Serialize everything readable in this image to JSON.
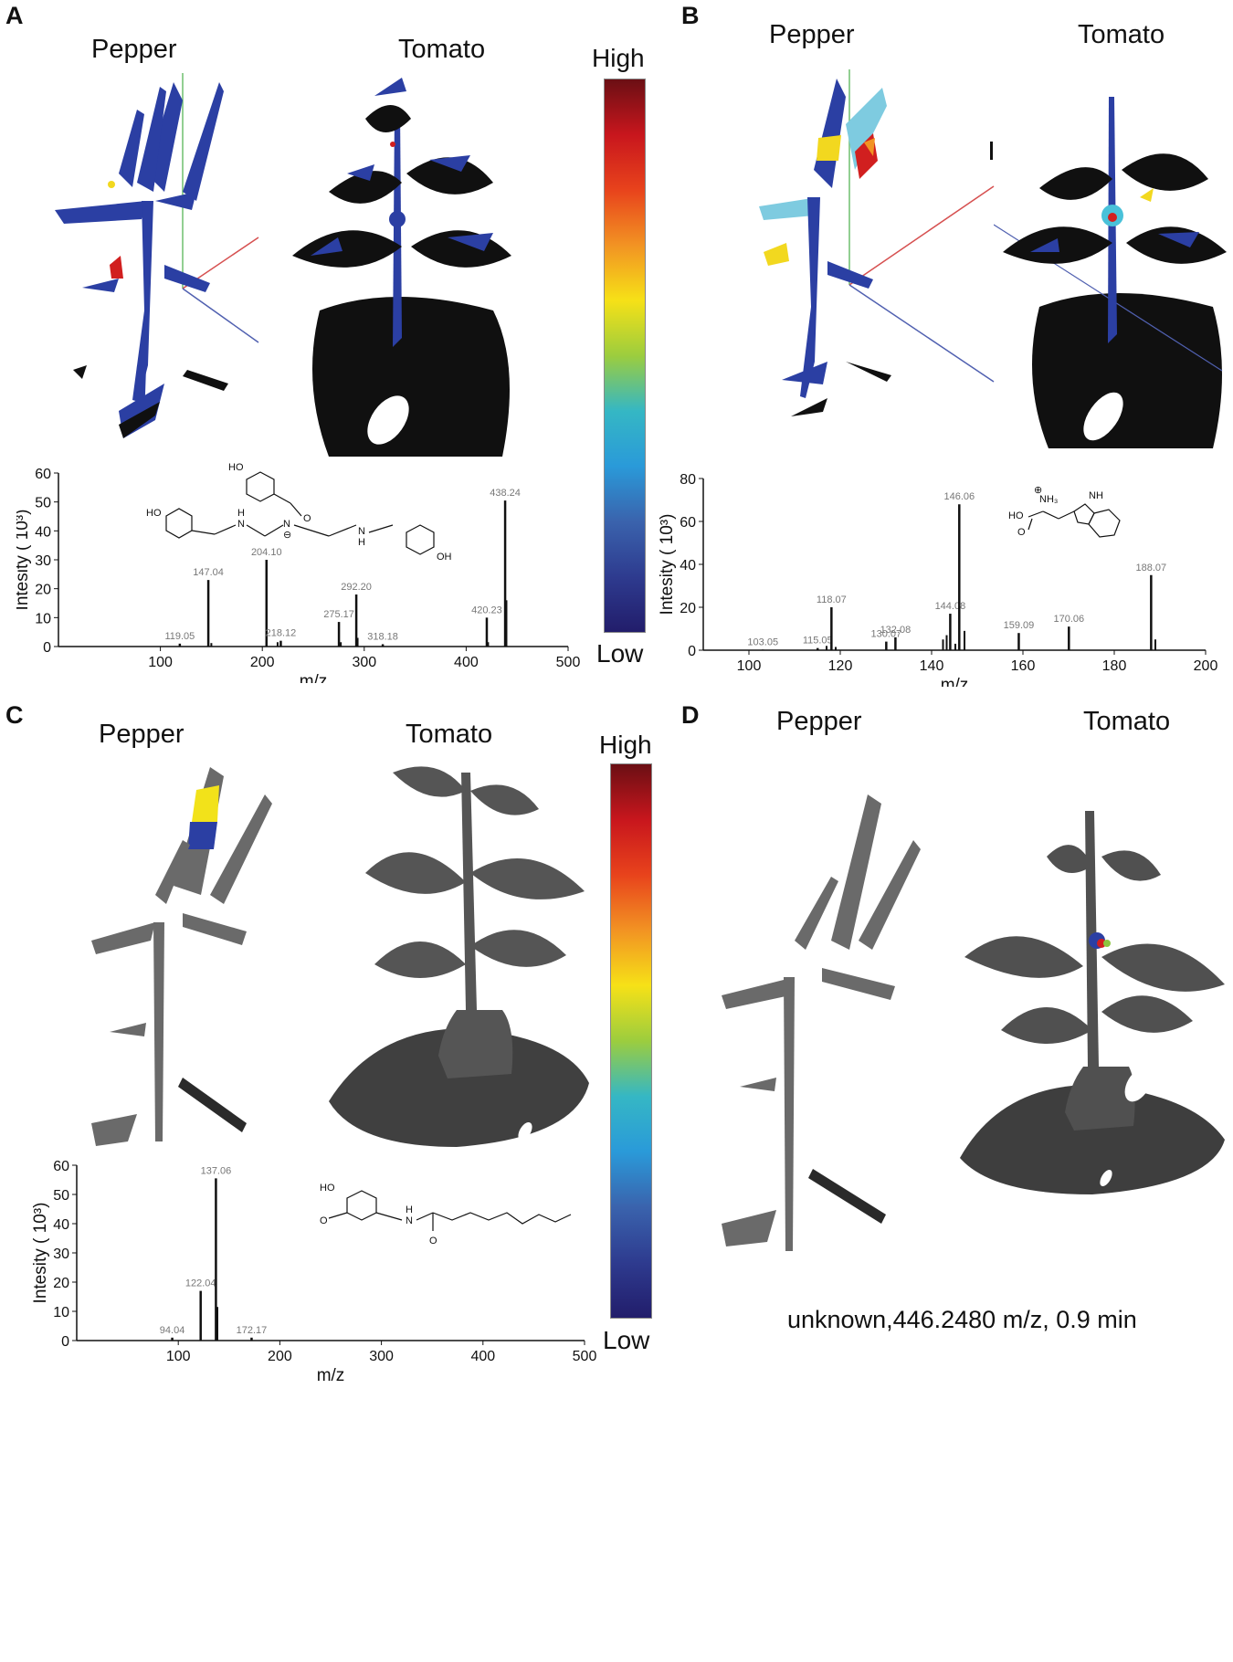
{
  "panels": [
    {
      "letter": "A",
      "left_label": "Pepper",
      "right_label": "Tomato"
    },
    {
      "letter": "B",
      "left_label": "Pepper",
      "right_label": "Tomato"
    },
    {
      "letter": "C",
      "left_label": "Pepper",
      "right_label": "Tomato"
    },
    {
      "letter": "D",
      "left_label": "Pepper",
      "right_label": "Tomato"
    }
  ],
  "colorbar": {
    "high": "High",
    "low": "Low"
  },
  "caption_d": "unknown,446.2480 m/z, 0.9 min",
  "colors": {
    "leaf_blue": "#2b3fa3",
    "soil_black": "#101010",
    "gray_plant": "#4a4a4a",
    "red_spot": "#d11f1f",
    "yellow_spot": "#f2d81f",
    "cyan_spot": "#49c1d9"
  },
  "chart_data": [
    {
      "type": "bar",
      "panel": "A",
      "xlabel": "m/z",
      "ylabel": "Intesity ( 10³)",
      "xlim": [
        0,
        500
      ],
      "ylim": [
        0,
        60
      ],
      "xticks": [
        100,
        200,
        300,
        400,
        500
      ],
      "yticks": [
        0,
        10,
        20,
        30,
        40,
        50,
        60
      ],
      "peaks": [
        {
          "x": 119.05,
          "y": 1,
          "label": "119.05"
        },
        {
          "x": 147.04,
          "y": 23,
          "label": "147.04"
        },
        {
          "x": 204.1,
          "y": 30,
          "label": "204.10"
        },
        {
          "x": 218.12,
          "y": 2,
          "label": "218.12"
        },
        {
          "x": 275.17,
          "y": 8.5,
          "label": "275.17"
        },
        {
          "x": 292.2,
          "y": 18,
          "label": "292.20"
        },
        {
          "x": 318.18,
          "y": 0.8,
          "label": "318.18"
        },
        {
          "x": 420.23,
          "y": 10,
          "label": "420.23"
        },
        {
          "x": 438.24,
          "y": 50.5,
          "label": "438.24"
        }
      ],
      "unlabeled_peaks": [
        {
          "x": 150,
          "y": 1.2
        },
        {
          "x": 215,
          "y": 1.5
        },
        {
          "x": 277,
          "y": 1.5
        },
        {
          "x": 293.5,
          "y": 3
        },
        {
          "x": 421.5,
          "y": 1.5
        },
        {
          "x": 439.5,
          "y": 16
        }
      ]
    },
    {
      "type": "bar",
      "panel": "B",
      "xlabel": "m/z",
      "ylabel": "Intesity ( 10³)",
      "xlim": [
        90,
        200
      ],
      "ylim": [
        0,
        80
      ],
      "xticks": [
        100,
        120,
        140,
        160,
        180,
        200
      ],
      "yticks": [
        0,
        20,
        40,
        60,
        80
      ],
      "peaks": [
        {
          "x": 103.05,
          "y": 0.3,
          "label": "103.05"
        },
        {
          "x": 115.05,
          "y": 1,
          "label": "115.05"
        },
        {
          "x": 118.07,
          "y": 20,
          "label": "118.07"
        },
        {
          "x": 130.07,
          "y": 4,
          "label": "130.07"
        },
        {
          "x": 132.08,
          "y": 6,
          "label": "132.08"
        },
        {
          "x": 144.08,
          "y": 17,
          "label": "144.08"
        },
        {
          "x": 146.06,
          "y": 68,
          "label": "146.06"
        },
        {
          "x": 159.09,
          "y": 8,
          "label": "159.09"
        },
        {
          "x": 170.06,
          "y": 11,
          "label": "170.06"
        },
        {
          "x": 188.07,
          "y": 35,
          "label": "188.07"
        }
      ],
      "unlabeled_peaks": [
        {
          "x": 117,
          "y": 2
        },
        {
          "x": 119,
          "y": 1.5
        },
        {
          "x": 142.5,
          "y": 5
        },
        {
          "x": 143.3,
          "y": 7
        },
        {
          "x": 145.2,
          "y": 3
        },
        {
          "x": 147.2,
          "y": 9
        },
        {
          "x": 189,
          "y": 5
        }
      ]
    },
    {
      "type": "bar",
      "panel": "C",
      "xlabel": "m/z",
      "ylabel": "Intesity ( 10³)",
      "xlim": [
        0,
        500
      ],
      "ylim": [
        0,
        60
      ],
      "xticks": [
        100,
        200,
        300,
        400,
        500
      ],
      "yticks": [
        0,
        10,
        20,
        30,
        40,
        50,
        60
      ],
      "peaks": [
        {
          "x": 94.04,
          "y": 1,
          "label": "94.04"
        },
        {
          "x": 122.04,
          "y": 17,
          "label": "122.04"
        },
        {
          "x": 137.06,
          "y": 55.5,
          "label": "137.06"
        },
        {
          "x": 172.17,
          "y": 1,
          "label": "172.17"
        }
      ],
      "unlabeled_peaks": [
        {
          "x": 138.5,
          "y": 11.5
        }
      ]
    }
  ]
}
